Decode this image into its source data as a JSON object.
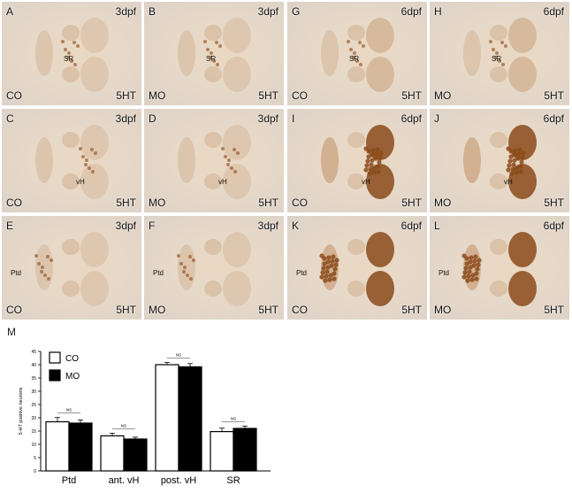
{
  "panels": [
    {
      "letter": "A",
      "stage": "3dpf",
      "cond": "CO",
      "marker": "5HT",
      "region": "SR",
      "intensity": "faint",
      "dense": false
    },
    {
      "letter": "B",
      "stage": "3dpf",
      "cond": "MO",
      "marker": "5HT",
      "region": "SR",
      "intensity": "faint",
      "dense": false
    },
    {
      "letter": "G",
      "stage": "6dpf",
      "cond": "CO",
      "marker": "5HT",
      "region": "SR",
      "intensity": "medium",
      "dense": false
    },
    {
      "letter": "H",
      "stage": "6dpf",
      "cond": "MO",
      "marker": "5HT",
      "region": "SR",
      "intensity": "medium",
      "dense": false
    },
    {
      "letter": "C",
      "stage": "3dpf",
      "cond": "CO",
      "marker": "5HT",
      "region": "vH",
      "intensity": "faint",
      "dense": false
    },
    {
      "letter": "D",
      "stage": "3dpf",
      "cond": "MO",
      "marker": "5HT",
      "region": "vH",
      "intensity": "faint",
      "dense": false
    },
    {
      "letter": "I",
      "stage": "6dpf",
      "cond": "CO",
      "marker": "5HT",
      "region": "vH",
      "intensity": "strong",
      "dense": true
    },
    {
      "letter": "J",
      "stage": "6dpf",
      "cond": "MO",
      "marker": "5HT",
      "region": "vH",
      "intensity": "strong",
      "dense": true
    },
    {
      "letter": "E",
      "stage": "3dpf",
      "cond": "CO",
      "marker": "5HT",
      "region": "Ptd",
      "intensity": "faint",
      "dense": false
    },
    {
      "letter": "F",
      "stage": "3dpf",
      "cond": "MO",
      "marker": "5HT",
      "region": "Ptd",
      "intensity": "faint",
      "dense": false
    },
    {
      "letter": "K",
      "stage": "6dpf",
      "cond": "CO",
      "marker": "5HT",
      "region": "Ptd",
      "intensity": "strong",
      "dense": true
    },
    {
      "letter": "L",
      "stage": "6dpf",
      "cond": "MO",
      "marker": "5HT",
      "region": "Ptd",
      "intensity": "strong",
      "dense": true
    }
  ],
  "figure_m": {
    "letter": "M",
    "colors": {
      "CO": "#ffffff",
      "MO": "#000000",
      "axis": "#000000",
      "stain_dark": "#8a4a1a",
      "stain_light": "#c9a07a"
    }
  },
  "chart_data": {
    "type": "bar",
    "categories": [
      "Ptd",
      "ant. vH",
      "post. vH",
      "SR"
    ],
    "series": [
      {
        "name": "CO",
        "values": [
          18.5,
          13.2,
          40.0,
          14.8
        ],
        "errors": [
          1.6,
          1.0,
          0.8,
          1.3
        ]
      },
      {
        "name": "MO",
        "values": [
          18.0,
          12.0,
          39.2,
          16.0
        ],
        "errors": [
          1.2,
          0.7,
          1.2,
          0.9
        ]
      }
    ],
    "significance": [
      "NS",
      "NS",
      "NS",
      "NS"
    ],
    "ylabel": "5-HT positive neurons",
    "ylim": [
      0,
      45
    ],
    "yticks": [
      0,
      5,
      10,
      15,
      20,
      25,
      30,
      35,
      40,
      45
    ],
    "legend": "top-left",
    "grid": false
  }
}
